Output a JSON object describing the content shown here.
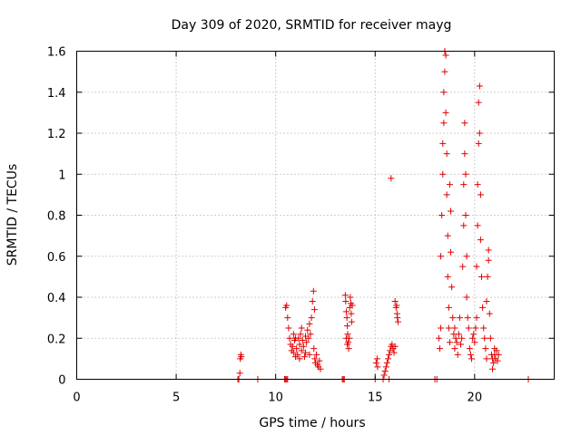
{
  "chart_data": {
    "type": "scatter",
    "title": "Day 309 of 2020, SRMTID for receiver mayg",
    "xlabel": "GPS time / hours",
    "ylabel": "SRMTID / TECUs",
    "xlim": [
      0,
      24
    ],
    "ylim": [
      0,
      1.6
    ],
    "xticks": [
      0,
      5,
      10,
      15,
      20
    ],
    "xtick_labels": [
      "0",
      "5",
      "10",
      "15",
      "20"
    ],
    "yticks": [
      0,
      0.2,
      0.4,
      0.6,
      0.8,
      1.0,
      1.2,
      1.4,
      1.6
    ],
    "ytick_labels": [
      "0",
      "0.2",
      "0.4",
      "0.6",
      "0.8",
      "1",
      "1.2",
      "1.4",
      "1.6"
    ],
    "grid": true,
    "marker": "+",
    "color": "#e00000",
    "series": [
      {
        "name": "SRMTID",
        "points": [
          [
            8.1,
            0.0
          ],
          [
            8.15,
            0.0
          ],
          [
            8.2,
            0.03
          ],
          [
            8.22,
            0.1
          ],
          [
            8.25,
            0.12
          ],
          [
            8.27,
            0.11
          ],
          [
            9.1,
            0.0
          ],
          [
            10.45,
            0.0
          ],
          [
            10.5,
            0.0
          ],
          [
            10.55,
            0.0
          ],
          [
            10.6,
            0.0
          ],
          [
            10.5,
            0.35
          ],
          [
            10.55,
            0.36
          ],
          [
            10.6,
            0.3
          ],
          [
            10.65,
            0.25
          ],
          [
            10.7,
            0.2
          ],
          [
            10.75,
            0.17
          ],
          [
            10.8,
            0.14
          ],
          [
            10.85,
            0.16
          ],
          [
            10.9,
            0.13
          ],
          [
            10.95,
            0.19
          ],
          [
            11.0,
            0.11
          ],
          [
            11.05,
            0.15
          ],
          [
            11.1,
            0.12
          ],
          [
            11.15,
            0.2
          ],
          [
            11.2,
            0.17
          ],
          [
            11.25,
            0.22
          ],
          [
            11.3,
            0.14
          ],
          [
            11.35,
            0.19
          ],
          [
            11.4,
            0.16
          ],
          [
            11.45,
            0.11
          ],
          [
            11.5,
            0.21
          ],
          [
            11.55,
            0.18
          ],
          [
            11.6,
            0.24
          ],
          [
            11.65,
            0.2
          ],
          [
            11.7,
            0.27
          ],
          [
            11.75,
            0.22
          ],
          [
            11.8,
            0.3
          ],
          [
            11.85,
            0.38
          ],
          [
            11.9,
            0.43
          ],
          [
            11.95,
            0.34
          ],
          [
            11.92,
            0.15
          ],
          [
            11.97,
            0.1
          ],
          [
            12.0,
            0.08
          ],
          [
            12.05,
            0.12
          ],
          [
            12.1,
            0.07
          ],
          [
            12.15,
            0.06
          ],
          [
            12.2,
            0.09
          ],
          [
            12.25,
            0.05
          ],
          [
            10.9,
            0.22
          ],
          [
            11.0,
            0.2
          ],
          [
            11.2,
            0.1
          ],
          [
            11.3,
            0.25
          ],
          [
            11.5,
            0.13
          ],
          [
            11.7,
            0.12
          ],
          [
            13.35,
            0.0
          ],
          [
            13.4,
            0.0
          ],
          [
            13.45,
            0.0
          ],
          [
            13.5,
            0.41
          ],
          [
            13.52,
            0.38
          ],
          [
            13.55,
            0.33
          ],
          [
            13.58,
            0.3
          ],
          [
            13.6,
            0.26
          ],
          [
            13.62,
            0.22
          ],
          [
            13.65,
            0.18
          ],
          [
            13.67,
            0.15
          ],
          [
            13.7,
            0.2
          ],
          [
            13.72,
            0.35
          ],
          [
            13.75,
            0.4
          ],
          [
            13.78,
            0.37
          ],
          [
            13.8,
            0.32
          ],
          [
            13.82,
            0.28
          ],
          [
            13.85,
            0.36
          ],
          [
            13.55,
            0.2
          ],
          [
            13.6,
            0.17
          ],
          [
            15.0,
            0.0
          ],
          [
            15.05,
            0.08
          ],
          [
            15.1,
            0.1
          ],
          [
            15.12,
            0.06
          ],
          [
            15.4,
            0.0
          ],
          [
            15.45,
            0.02
          ],
          [
            15.5,
            0.04
          ],
          [
            15.55,
            0.06
          ],
          [
            15.6,
            0.08
          ],
          [
            15.65,
            0.1
          ],
          [
            15.7,
            0.12
          ],
          [
            15.75,
            0.14
          ],
          [
            15.8,
            0.16
          ],
          [
            15.85,
            0.17
          ],
          [
            15.9,
            0.15
          ],
          [
            15.95,
            0.13
          ],
          [
            16.0,
            0.16
          ],
          [
            15.7,
            0.0
          ],
          [
            15.8,
            0.98
          ],
          [
            16.0,
            0.38
          ],
          [
            16.05,
            0.35
          ],
          [
            16.1,
            0.32
          ],
          [
            16.12,
            0.3
          ],
          [
            16.15,
            0.28
          ],
          [
            16.08,
            0.36
          ],
          [
            18.0,
            0.0
          ],
          [
            18.1,
            0.0
          ],
          [
            18.2,
            0.2
          ],
          [
            18.25,
            0.15
          ],
          [
            18.3,
            0.25
          ],
          [
            18.3,
            0.6
          ],
          [
            18.35,
            0.8
          ],
          [
            18.4,
            1.0
          ],
          [
            18.4,
            1.15
          ],
          [
            18.45,
            1.25
          ],
          [
            18.45,
            1.4
          ],
          [
            18.5,
            1.5
          ],
          [
            18.5,
            1.6
          ],
          [
            18.55,
            1.58
          ],
          [
            18.55,
            1.3
          ],
          [
            18.6,
            1.1
          ],
          [
            18.6,
            0.9
          ],
          [
            18.65,
            0.7
          ],
          [
            18.65,
            0.5
          ],
          [
            18.7,
            0.35
          ],
          [
            18.7,
            0.25
          ],
          [
            18.75,
            0.18
          ],
          [
            18.75,
            0.95
          ],
          [
            18.8,
            0.82
          ],
          [
            18.8,
            0.62
          ],
          [
            18.85,
            0.45
          ],
          [
            18.9,
            0.3
          ],
          [
            18.95,
            0.22
          ],
          [
            19.0,
            0.25
          ],
          [
            19.0,
            0.15
          ],
          [
            19.05,
            0.2
          ],
          [
            19.1,
            0.18
          ],
          [
            19.15,
            0.12
          ],
          [
            19.2,
            0.22
          ],
          [
            19.25,
            0.3
          ],
          [
            19.3,
            0.17
          ],
          [
            19.35,
            0.2
          ],
          [
            19.4,
            0.55
          ],
          [
            19.45,
            0.75
          ],
          [
            19.45,
            0.95
          ],
          [
            19.5,
            1.1
          ],
          [
            19.5,
            1.25
          ],
          [
            19.55,
            1.0
          ],
          [
            19.55,
            0.8
          ],
          [
            19.6,
            0.6
          ],
          [
            19.6,
            0.4
          ],
          [
            19.65,
            0.3
          ],
          [
            19.7,
            0.25
          ],
          [
            19.75,
            0.15
          ],
          [
            19.8,
            0.12
          ],
          [
            19.85,
            0.1
          ],
          [
            19.9,
            0.2
          ],
          [
            19.95,
            0.22
          ],
          [
            20.0,
            0.18
          ],
          [
            20.05,
            0.25
          ],
          [
            20.1,
            0.3
          ],
          [
            20.1,
            0.55
          ],
          [
            20.15,
            0.75
          ],
          [
            20.15,
            0.95
          ],
          [
            20.2,
            1.15
          ],
          [
            20.2,
            1.35
          ],
          [
            20.25,
            1.43
          ],
          [
            20.25,
            1.2
          ],
          [
            20.3,
            0.9
          ],
          [
            20.3,
            0.68
          ],
          [
            20.35,
            0.5
          ],
          [
            20.4,
            0.35
          ],
          [
            20.45,
            0.25
          ],
          [
            20.5,
            0.2
          ],
          [
            20.55,
            0.15
          ],
          [
            20.6,
            0.38
          ],
          [
            20.65,
            0.5
          ],
          [
            20.7,
            0.63
          ],
          [
            20.7,
            0.58
          ],
          [
            20.75,
            0.32
          ],
          [
            20.8,
            0.2
          ],
          [
            20.85,
            0.12
          ],
          [
            20.9,
            0.1
          ],
          [
            20.95,
            0.08
          ],
          [
            21.0,
            0.12
          ],
          [
            21.05,
            0.1
          ],
          [
            21.1,
            0.14
          ],
          [
            21.15,
            0.09
          ],
          [
            21.2,
            0.12
          ],
          [
            20.6,
            0.1
          ],
          [
            20.9,
            0.05
          ],
          [
            21.0,
            0.15
          ],
          [
            22.7,
            0.0
          ]
        ]
      }
    ]
  }
}
